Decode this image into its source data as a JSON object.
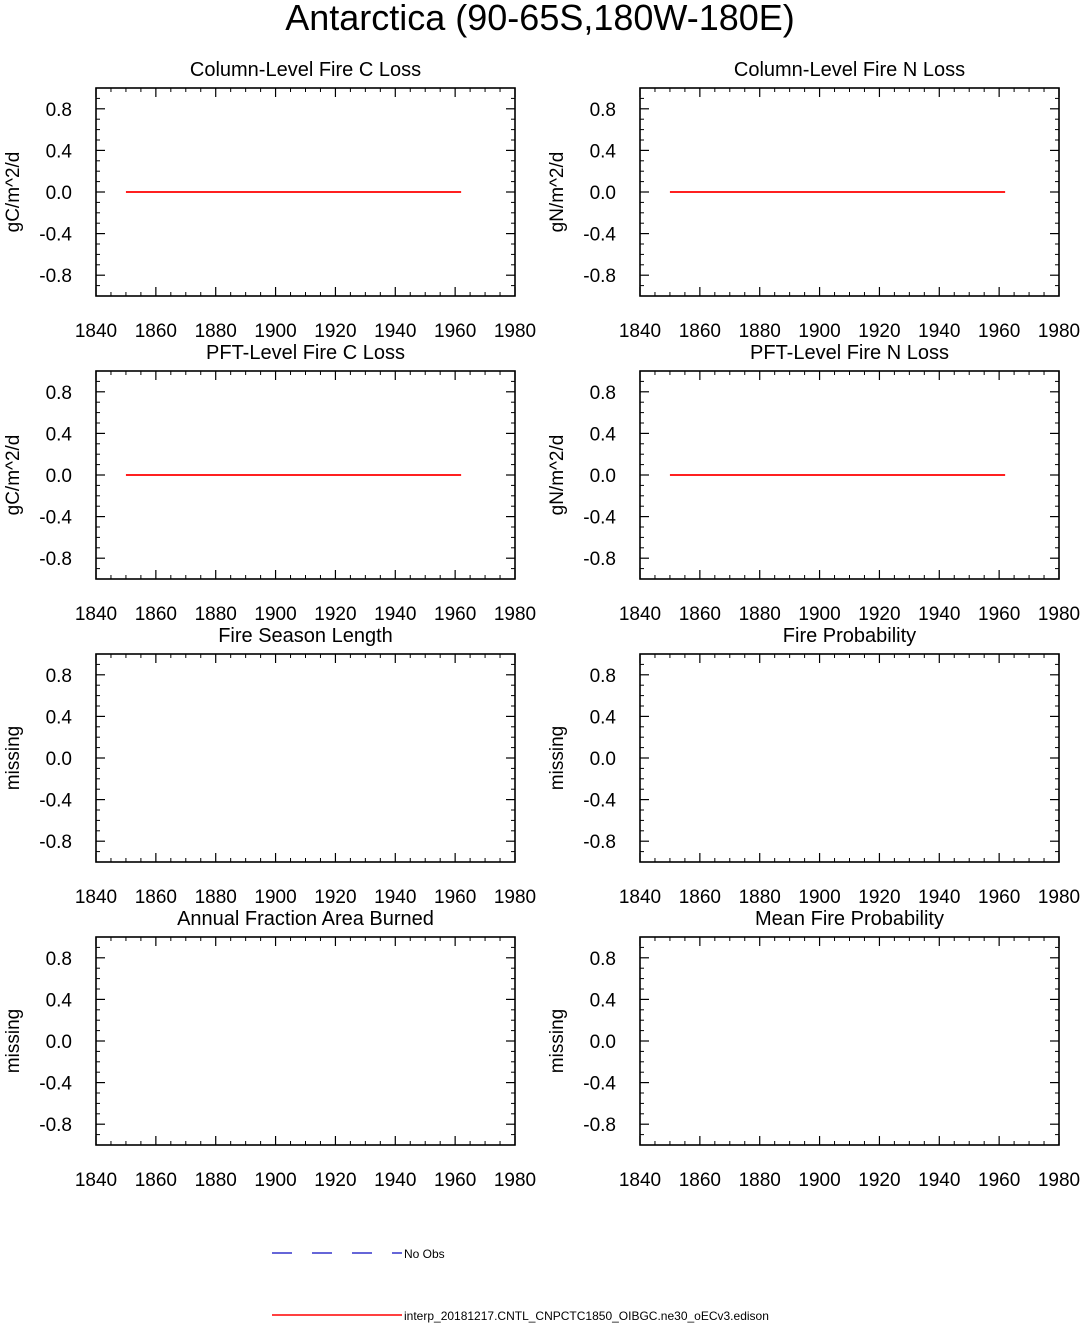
{
  "figure": {
    "title": "Antarctica (90-65S,180W-180E)"
  },
  "chart_data": [
    {
      "type": "line",
      "title": "Column-Level Fire C Loss",
      "ylabel": "gC/m^2/d",
      "xlabel": "",
      "xlim": [
        1840,
        1980
      ],
      "ylim": [
        -1,
        1
      ],
      "xticks": [
        1840,
        1860,
        1880,
        1900,
        1920,
        1940,
        1960,
        1980
      ],
      "yticks": [
        0.8,
        0.4,
        0.0,
        -0.4,
        -0.8
      ],
      "series": [
        {
          "name": "interp_20181217.CNTL_CNPCTC1850_OIBGC.ne30_oECv3.edison",
          "color": "#ff0000",
          "x": [
            1850,
            1962
          ],
          "y": [
            0.0,
            0.0
          ]
        }
      ]
    },
    {
      "type": "line",
      "title": "Column-Level Fire N Loss",
      "ylabel": "gN/m^2/d",
      "xlabel": "",
      "xlim": [
        1840,
        1980
      ],
      "ylim": [
        -1,
        1
      ],
      "xticks": [
        1840,
        1860,
        1880,
        1900,
        1920,
        1940,
        1960,
        1980
      ],
      "yticks": [
        0.8,
        0.4,
        0.0,
        -0.4,
        -0.8
      ],
      "series": [
        {
          "name": "interp_20181217.CNTL_CNPCTC1850_OIBGC.ne30_oECv3.edison",
          "color": "#ff0000",
          "x": [
            1850,
            1962
          ],
          "y": [
            0.0,
            0.0
          ]
        }
      ]
    },
    {
      "type": "line",
      "title": "PFT-Level Fire C Loss",
      "ylabel": "gC/m^2/d",
      "xlabel": "",
      "xlim": [
        1840,
        1980
      ],
      "ylim": [
        -1,
        1
      ],
      "xticks": [
        1840,
        1860,
        1880,
        1900,
        1920,
        1940,
        1960,
        1980
      ],
      "yticks": [
        0.8,
        0.4,
        0.0,
        -0.4,
        -0.8
      ],
      "series": [
        {
          "name": "interp_20181217.CNTL_CNPCTC1850_OIBGC.ne30_oECv3.edison",
          "color": "#ff0000",
          "x": [
            1850,
            1962
          ],
          "y": [
            0.0,
            0.0
          ]
        }
      ]
    },
    {
      "type": "line",
      "title": "PFT-Level Fire N Loss",
      "ylabel": "gN/m^2/d",
      "xlabel": "",
      "xlim": [
        1840,
        1980
      ],
      "ylim": [
        -1,
        1
      ],
      "xticks": [
        1840,
        1860,
        1880,
        1900,
        1920,
        1940,
        1960,
        1980
      ],
      "yticks": [
        0.8,
        0.4,
        0.0,
        -0.4,
        -0.8
      ],
      "series": [
        {
          "name": "interp_20181217.CNTL_CNPCTC1850_OIBGC.ne30_oECv3.edison",
          "color": "#ff0000",
          "x": [
            1850,
            1962
          ],
          "y": [
            0.0,
            0.0
          ]
        }
      ]
    },
    {
      "type": "line",
      "title": "Fire Season Length",
      "ylabel": "missing",
      "xlabel": "",
      "xlim": [
        1840,
        1980
      ],
      "ylim": [
        -1,
        1
      ],
      "xticks": [
        1840,
        1860,
        1880,
        1900,
        1920,
        1940,
        1960,
        1980
      ],
      "yticks": [
        0.8,
        0.4,
        0.0,
        -0.4,
        -0.8
      ],
      "series": []
    },
    {
      "type": "line",
      "title": "Fire Probability",
      "ylabel": "missing",
      "xlabel": "",
      "xlim": [
        1840,
        1980
      ],
      "ylim": [
        -1,
        1
      ],
      "xticks": [
        1840,
        1860,
        1880,
        1900,
        1920,
        1940,
        1960,
        1980
      ],
      "yticks": [
        0.8,
        0.4,
        0.0,
        -0.4,
        -0.8
      ],
      "series": []
    },
    {
      "type": "line",
      "title": "Annual Fraction Area Burned",
      "ylabel": "missing",
      "xlabel": "",
      "xlim": [
        1840,
        1980
      ],
      "ylim": [
        -1,
        1
      ],
      "xticks": [
        1840,
        1860,
        1880,
        1900,
        1920,
        1940,
        1960,
        1980
      ],
      "yticks": [
        0.8,
        0.4,
        0.0,
        -0.4,
        -0.8
      ],
      "series": []
    },
    {
      "type": "line",
      "title": "Mean Fire Probability",
      "ylabel": "missing",
      "xlabel": "",
      "xlim": [
        1840,
        1980
      ],
      "ylim": [
        -1,
        1
      ],
      "xticks": [
        1840,
        1860,
        1880,
        1900,
        1920,
        1940,
        1960,
        1980
      ],
      "yticks": [
        0.8,
        0.4,
        0.0,
        -0.4,
        -0.8
      ],
      "series": []
    }
  ],
  "legend": {
    "placement": "bottom",
    "entries": [
      {
        "label": "No Obs",
        "color": "#3333cc",
        "style": "dashed"
      },
      {
        "label": "interp_20181217.CNTL_CNPCTC1850_OIBGC.ne30_oECv3.edison",
        "color": "#ff0000",
        "style": "solid"
      }
    ]
  }
}
